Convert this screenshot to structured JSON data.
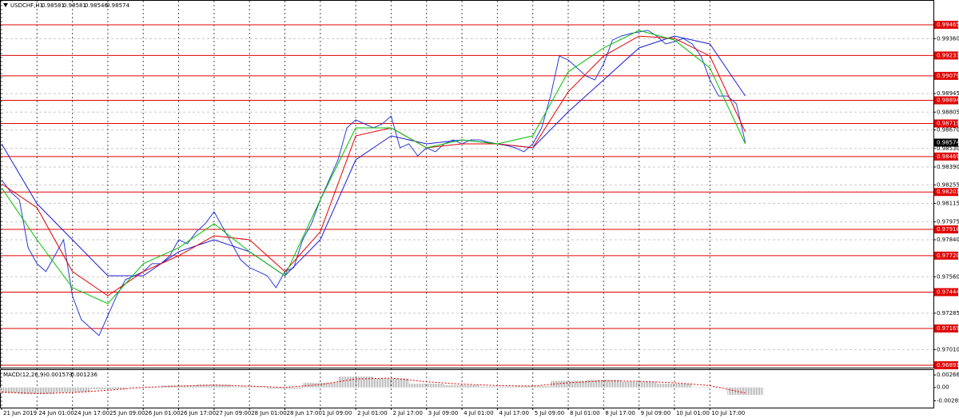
{
  "chart_data": [
    {
      "type": "line",
      "symbol": "USDCHF,H1",
      "ohlc": [
        0.98581,
        0.98581,
        0.98546,
        0.98574
      ],
      "xlim": [
        0,
        421
      ],
      "ylim": [
        0.96873,
        0.9958
      ],
      "grid": true,
      "yticks": [
        {
          "value": 0.9936,
          "label": "0.99360"
        },
        0.98945,
        0.98805,
        {
          "value": 0.9867,
          "label": "0.98670"
        },
        {
          "value": 0.9853,
          "label": "0.98530"
        },
        {
          "value": 0.9839,
          "label": "0.98390"
        },
        0.98255,
        0.98115,
        0.97975,
        {
          "value": 0.9784,
          "label": "0.97840"
        },
        {
          "value": 0.9756,
          "label": "0.97560"
        },
        0.97285,
        {
          "value": 0.9701,
          "label": "0.97010"
        }
      ],
      "xticks": [
        {
          "value": 0,
          "label": "21 Jun 2019"
        },
        {
          "value": 16,
          "label": "24 Jun 01:00"
        },
        {
          "value": 32,
          "label": "24 Jun 17:00"
        },
        {
          "value": 48,
          "label": "25 Jun 09:00"
        },
        {
          "value": 64,
          "label": "26 Jun 01:00"
        },
        {
          "value": 80,
          "label": "26 Jun 17:00"
        },
        {
          "value": 96,
          "label": "27 Jun 09:00"
        },
        {
          "value": 112,
          "label": "28 Jun 01:00"
        },
        {
          "value": 128,
          "label": "28 Jun 17:00"
        },
        {
          "value": 144,
          "label": "1 Jul 09:00"
        },
        {
          "value": 160,
          "label": "2 Jul 01:00"
        },
        {
          "value": 176,
          "label": "2 Jul 17:00"
        },
        {
          "value": 192,
          "label": "3 Jul 09:00"
        },
        {
          "value": 208,
          "label": "4 Jul 01:00"
        },
        {
          "value": 224,
          "label": "4 Jul 17:00"
        },
        {
          "value": 240,
          "label": "5 Jul 09:00"
        },
        {
          "value": 256,
          "label": "8 Jul 01:00"
        },
        {
          "value": 272,
          "label": "8 Jul 17:00"
        },
        {
          "value": 288,
          "label": "9 Jul 09:00"
        },
        {
          "value": 304,
          "label": "10 Jul 01:00"
        },
        {
          "value": 320,
          "label": "10 Jul 17:00"
        }
      ],
      "series": [
        {
          "color": "#2a3fd8",
          "x": [
            0,
            4,
            8,
            12,
            16,
            20,
            24,
            28,
            32,
            36,
            40,
            44,
            48,
            52,
            56,
            60,
            64,
            68,
            72,
            76,
            80,
            84,
            88,
            92,
            96,
            100,
            104,
            108,
            112,
            116,
            120,
            124,
            128,
            132,
            136,
            140,
            144,
            148,
            152,
            156,
            160,
            164,
            168,
            172,
            176,
            180,
            184,
            188,
            192,
            196,
            200,
            204,
            208,
            212,
            216,
            220,
            224,
            228,
            232,
            236,
            240,
            244,
            248,
            252,
            256,
            260,
            264,
            268,
            272,
            276,
            280,
            284,
            288,
            292,
            296,
            300,
            304,
            308,
            312,
            316,
            320,
            324,
            328,
            332,
            336
          ],
          "values": [
            0.98293,
            0.98203,
            0.98142,
            0.9778,
            0.97659,
            0.97599,
            0.97719,
            0.9784,
            0.97417,
            0.97236,
            0.97176,
            0.97115,
            0.97266,
            0.97417,
            0.97538,
            0.97568,
            0.97599,
            0.97659,
            0.97659,
            0.97719,
            0.9784,
            0.9781,
            0.97901,
            0.97961,
            0.98052,
            0.97931,
            0.9781,
            0.97689,
            0.97629,
            0.97599,
            0.97568,
            0.97478,
            0.97599,
            0.97629,
            0.9784,
            0.97961,
            0.98142,
            0.98293,
            0.98444,
            0.98686,
            0.98746,
            0.98716,
            0.98686,
            0.98716,
            0.98776,
            0.98535,
            0.98565,
            0.98474,
            0.98535,
            0.98505,
            0.98565,
            0.98595,
            0.98565,
            0.98595,
            0.98595,
            0.98577,
            0.98565,
            0.98553,
            0.98535,
            0.98505,
            0.98565,
            0.98686,
            0.98927,
            0.99229,
            0.99199,
            0.99139,
            0.99078,
            0.99048,
            0.99169,
            0.9935,
            0.9938,
            0.99399,
            0.99411,
            0.99423,
            0.9938,
            0.9932,
            0.99338,
            0.99362,
            0.9932,
            0.99229,
            0.99048,
            0.98927,
            0.98927,
            0.98867,
            0.98574
          ]
        },
        {
          "color": "#1c1cd8",
          "x": [
            0,
            16,
            32,
            48,
            64,
            80,
            96,
            112,
            128,
            144,
            160,
            176,
            192,
            208,
            224,
            240,
            256,
            272,
            288,
            304,
            320,
            336
          ],
          "values": [
            0.98565,
            0.98112,
            0.9784,
            0.97568,
            0.97568,
            0.9775,
            0.9784,
            0.9775,
            0.97568,
            0.9784,
            0.98444,
            0.98625,
            0.98565,
            0.98595,
            0.98565,
            0.98535,
            0.98807,
            0.99048,
            0.9929,
            0.9938,
            0.9932,
            0.98927
          ]
        },
        {
          "color": "#e00000",
          "x": [
            0,
            16,
            32,
            48,
            64,
            80,
            96,
            112,
            128,
            144,
            160,
            176,
            192,
            208,
            224,
            240,
            256,
            272,
            288,
            304,
            320,
            336
          ],
          "values": [
            0.98263,
            0.98082,
            0.97599,
            0.97417,
            0.97599,
            0.97719,
            0.9787,
            0.9784,
            0.97599,
            0.97901,
            0.98625,
            0.98686,
            0.98535,
            0.98565,
            0.98565,
            0.98535,
            0.98958,
            0.99229,
            0.9938,
            0.99362,
            0.99229,
            0.98656
          ]
        },
        {
          "color": "#00c000",
          "x": [
            0,
            16,
            32,
            48,
            64,
            80,
            96,
            112,
            128,
            144,
            160,
            176,
            192,
            208,
            224,
            240,
            256,
            272,
            288,
            304,
            320,
            336
          ],
          "values": [
            0.98233,
            0.9784,
            0.97478,
            0.97357,
            0.97659,
            0.9778,
            0.97961,
            0.9775,
            0.97568,
            0.98142,
            0.98686,
            0.98686,
            0.98535,
            0.98595,
            0.98565,
            0.98625,
            0.99109,
            0.9929,
            0.99423,
            0.9935,
            0.99139,
            0.98565
          ]
        }
      ],
      "levels": [
        0.99465,
        0.99233,
        0.99079,
        0.98894,
        0.98719,
        0.98469,
        0.98201,
        0.97918,
        {
          "value": 0.9772,
          "label": "0.97720"
        },
        0.97444,
        0.97169,
        0.96891
      ],
      "level_color": "#e00000",
      "current_price": 0.98574
    },
    {
      "type": "macd",
      "title": "MACD(12,26,9)",
      "current": [
        -0.001573,
        -0.001236
      ],
      "xlim": [
        0,
        421
      ],
      "ylim": [
        -0.0043,
        0.0037
      ],
      "yticks": [
        0.00266,
        {
          "value": 0,
          "label": "0.00"
        },
        -0.00285
      ],
      "x": [
        0,
        16,
        32,
        48,
        64,
        80,
        96,
        112,
        128,
        144,
        160,
        176,
        192,
        208,
        224,
        240,
        256,
        272,
        288,
        304,
        320,
        336
      ],
      "series": [
        {
          "color": "#a8a8a8",
          "values": [
            -0.0012,
            -0.0014,
            -0.001,
            -0.0004,
            0.0001,
            0.0004,
            0.0006,
            0.0002,
            -0.0003,
            0.001,
            0.0023,
            0.0019,
            0.0008,
            0.0005,
            0.0002,
            0.0003,
            0.0014,
            0.0016,
            0.0012,
            0.0008,
            0.0001,
            -0.0016
          ]
        },
        {
          "color": "#e00000",
          "values": [
            -0.001,
            -0.0013,
            -0.0011,
            -0.0006,
            0,
            0.0003,
            0.0005,
            0.0003,
            0,
            0.0006,
            0.0018,
            0.002,
            0.0012,
            0.0007,
            0.0004,
            0.0003,
            0.001,
            0.0014,
            0.0013,
            0.001,
            0.0004,
            -0.0012
          ]
        }
      ]
    }
  ]
}
